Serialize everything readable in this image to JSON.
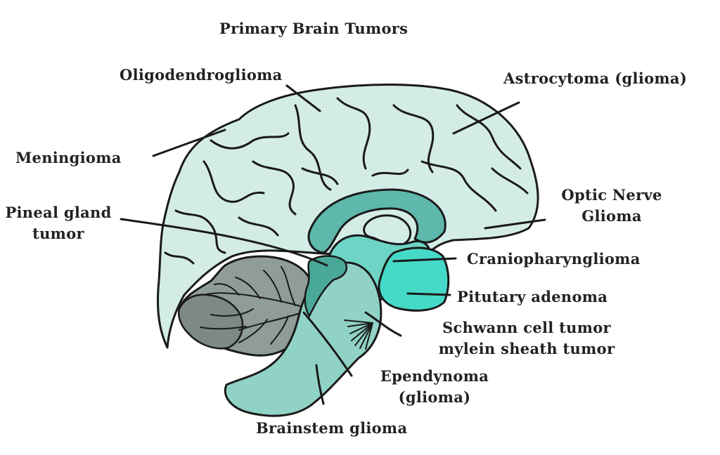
{
  "title": "Primary Brain Tumors",
  "labels": {
    "oligodendroglioma": "Oligodendroglioma",
    "astrocytoma": "Astrocytoma (glioma)",
    "meningioma": "Meningioma",
    "optic_nerve_glioma_1": "Optic Nerve",
    "optic_nerve_glioma_2": "Glioma",
    "pineal_gland_tumor_1": "Pineal gland",
    "pineal_gland_tumor_2": "tumor",
    "craniopharyngioma": "Craniopharynglioma",
    "pituitary_adenoma": "Pitutary adenoma",
    "schwann_1": "Schwann cell tumor",
    "schwann_2": "mylein sheath tumor",
    "ependymoma_1": "Ependynoma",
    "ependymoma_2": "(glioma)",
    "brainstem_glioma": "Brainstem glioma"
  },
  "colors": {
    "cerebrum": "#d3ece6",
    "corpus_callosum": "#5eb8ab",
    "thalamus": "#6ed4c5",
    "pituitary": "#45dac8",
    "brainstem": "#90d2c6",
    "cerebellum_light": "#8f9c98",
    "cerebellum_dark": "#7c8985",
    "outline": "#1a1a1a",
    "text": "#222222"
  }
}
